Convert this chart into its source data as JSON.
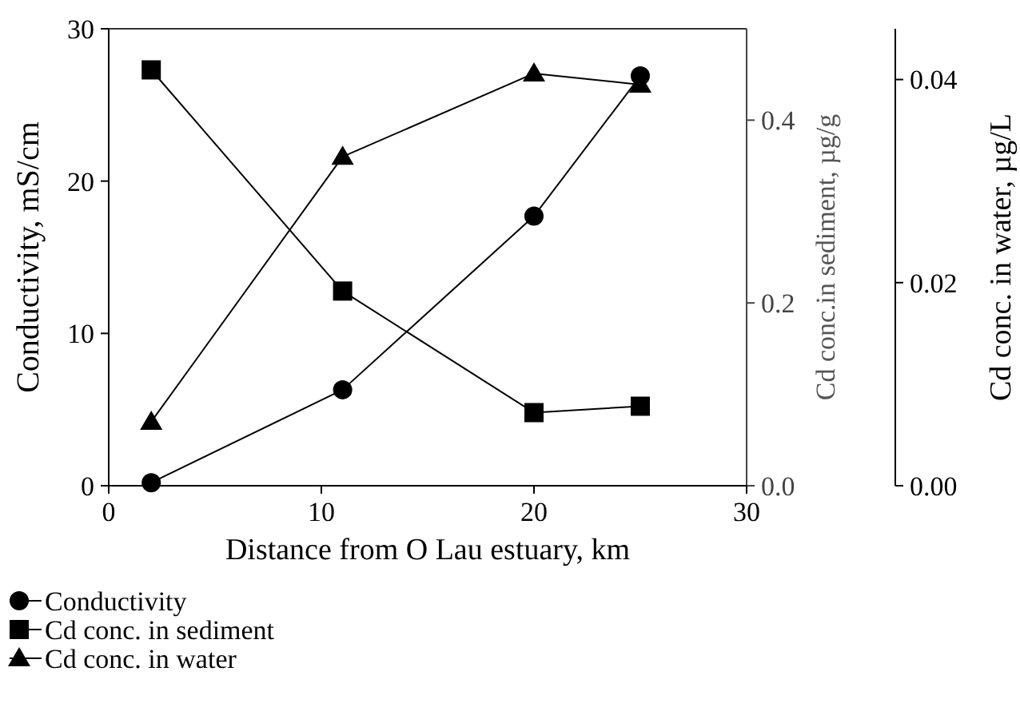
{
  "chart_data": {
    "type": "line",
    "xlabel": "Distance from O Lau estuary, km",
    "ylabel": "Conductivity, mS/cm",
    "y2label": "Cd conc.in sediment, µg/g",
    "y3label": "Cd conc. in water, µg/L",
    "x": [
      2,
      11,
      20,
      25
    ],
    "xlim": [
      0,
      30
    ],
    "xticks": [
      0,
      10,
      20,
      30
    ],
    "ylim": [
      0,
      30
    ],
    "yticks": [
      0,
      10,
      20,
      30
    ],
    "y2lim": [
      0,
      0.5
    ],
    "y2ticks": [
      {
        "value": 0,
        "label": "0.0"
      },
      {
        "value": 0.2,
        "label": "0.2"
      },
      {
        "value": 0.4,
        "label": "0.4"
      }
    ],
    "y3lim": [
      0,
      0.045
    ],
    "y3ticks": [
      {
        "value": 0,
        "label": "0.00"
      },
      {
        "value": 0.02,
        "label": "0.02"
      },
      {
        "value": 0.04,
        "label": "0.04"
      }
    ],
    "legend": "bottom",
    "grid": false,
    "line_style": "solid",
    "series": [
      {
        "name": "Conductivity",
        "color": "#000000",
        "marker": "circle",
        "values": [
          0.2,
          6.3,
          17.7,
          26.9
        ]
      },
      {
        "name": "Cd conc. in sediment",
        "color": "#000000",
        "marker": "square",
        "axis": "y2",
        "values": [
          0.455,
          0.213,
          0.08,
          0.087
        ]
      },
      {
        "name": "Cd conc. in water",
        "color": "#000000",
        "marker": "triangle",
        "axis": "y3",
        "values": [
          0.0063,
          0.0324,
          0.0406,
          0.0395
        ]
      }
    ]
  }
}
